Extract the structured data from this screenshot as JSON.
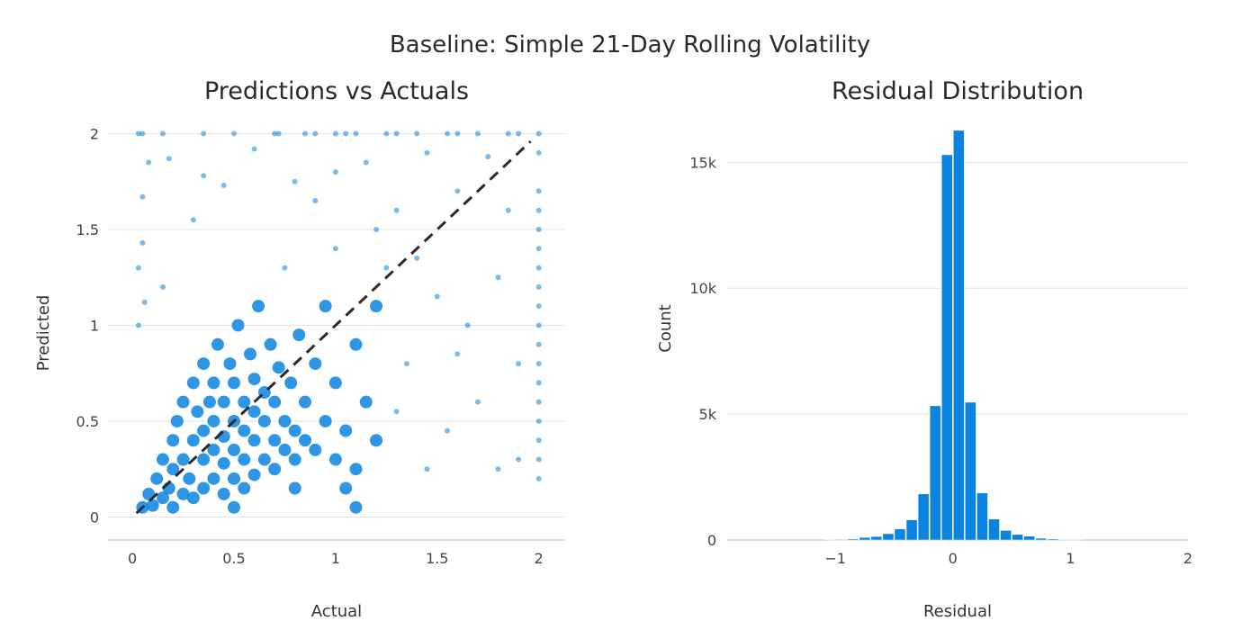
{
  "title": "Baseline: Simple 21-Day Rolling Volatility",
  "colors": {
    "marker": "#0a84e0",
    "diagonal": "#2b2b2b",
    "grid": "#e3e3e3",
    "tick": "#444444"
  },
  "chart_data": [
    {
      "type": "scatter",
      "title": "Predictions vs Actuals",
      "xlabel": "Actual",
      "ylabel": "Predicted",
      "xlim": [
        -0.12,
        2.13
      ],
      "ylim": [
        -0.12,
        2.04
      ],
      "xticks": [
        0,
        0.5,
        1,
        1.5,
        2
      ],
      "xtick_labels": [
        "0",
        "0.5",
        "1",
        "1.5",
        "2"
      ],
      "yticks": [
        0,
        0.5,
        1,
        1.5,
        2
      ],
      "ytick_labels": [
        "0",
        "0.5",
        "1",
        "1.5",
        "2"
      ],
      "grid": "horizontal",
      "reference_line": {
        "style": "dashed",
        "from": [
          0.02,
          0.02
        ],
        "to": [
          1.96,
          1.96
        ]
      },
      "points": [
        [
          0.05,
          0.05
        ],
        [
          0.08,
          0.12
        ],
        [
          0.1,
          0.06
        ],
        [
          0.12,
          0.2
        ],
        [
          0.15,
          0.1
        ],
        [
          0.15,
          0.3
        ],
        [
          0.18,
          0.15
        ],
        [
          0.2,
          0.05
        ],
        [
          0.2,
          0.25
        ],
        [
          0.2,
          0.4
        ],
        [
          0.22,
          0.5
        ],
        [
          0.25,
          0.12
        ],
        [
          0.25,
          0.3
        ],
        [
          0.25,
          0.6
        ],
        [
          0.28,
          0.2
        ],
        [
          0.3,
          0.1
        ],
        [
          0.3,
          0.4
        ],
        [
          0.3,
          0.7
        ],
        [
          0.32,
          0.55
        ],
        [
          0.35,
          0.15
        ],
        [
          0.35,
          0.3
        ],
        [
          0.35,
          0.45
        ],
        [
          0.35,
          0.8
        ],
        [
          0.38,
          0.6
        ],
        [
          0.4,
          0.2
        ],
        [
          0.4,
          0.35
        ],
        [
          0.4,
          0.5
        ],
        [
          0.4,
          0.7
        ],
        [
          0.42,
          0.9
        ],
        [
          0.45,
          0.12
        ],
        [
          0.45,
          0.28
        ],
        [
          0.45,
          0.42
        ],
        [
          0.45,
          0.6
        ],
        [
          0.48,
          0.8
        ],
        [
          0.5,
          0.2
        ],
        [
          0.5,
          0.35
        ],
        [
          0.5,
          0.5
        ],
        [
          0.5,
          0.7
        ],
        [
          0.52,
          1.0
        ],
        [
          0.55,
          0.15
        ],
        [
          0.55,
          0.3
        ],
        [
          0.55,
          0.45
        ],
        [
          0.55,
          0.6
        ],
        [
          0.58,
          0.85
        ],
        [
          0.6,
          0.22
        ],
        [
          0.6,
          0.4
        ],
        [
          0.6,
          0.55
        ],
        [
          0.6,
          0.72
        ],
        [
          0.62,
          1.1
        ],
        [
          0.65,
          0.3
        ],
        [
          0.65,
          0.5
        ],
        [
          0.65,
          0.65
        ],
        [
          0.68,
          0.9
        ],
        [
          0.7,
          0.25
        ],
        [
          0.7,
          0.4
        ],
        [
          0.7,
          0.6
        ],
        [
          0.72,
          0.78
        ],
        [
          0.75,
          0.35
        ],
        [
          0.75,
          0.5
        ],
        [
          0.78,
          0.7
        ],
        [
          0.8,
          0.3
        ],
        [
          0.8,
          0.45
        ],
        [
          0.82,
          0.95
        ],
        [
          0.85,
          0.4
        ],
        [
          0.85,
          0.6
        ],
        [
          0.9,
          0.35
        ],
        [
          0.9,
          0.8
        ],
        [
          0.95,
          0.5
        ],
        [
          1.0,
          0.3
        ],
        [
          1.0,
          0.7
        ],
        [
          1.05,
          0.45
        ],
        [
          1.1,
          0.9
        ],
        [
          1.1,
          0.25
        ],
        [
          1.15,
          0.6
        ],
        [
          1.2,
          0.4
        ],
        [
          1.2,
          1.1
        ],
        [
          0.03,
          2
        ],
        [
          0.05,
          2
        ],
        [
          0.15,
          2
        ],
        [
          0.35,
          2
        ],
        [
          0.5,
          2
        ],
        [
          0.7,
          2
        ],
        [
          0.72,
          2
        ],
        [
          0.85,
          2
        ],
        [
          0.9,
          2
        ],
        [
          1.0,
          2
        ],
        [
          1.05,
          2
        ],
        [
          1.1,
          2
        ],
        [
          1.25,
          2
        ],
        [
          1.3,
          2
        ],
        [
          1.4,
          2
        ],
        [
          1.55,
          2
        ],
        [
          1.6,
          2
        ],
        [
          1.7,
          2
        ],
        [
          1.85,
          2
        ],
        [
          1.9,
          2
        ],
        [
          2,
          2
        ],
        [
          0.08,
          1.85
        ],
        [
          0.18,
          1.87
        ],
        [
          0.05,
          1.67
        ],
        [
          0.05,
          1.43
        ],
        [
          0.03,
          1.3
        ],
        [
          0.06,
          1.12
        ],
        [
          0.03,
          1.0
        ],
        [
          0.15,
          1.2
        ],
        [
          0.3,
          1.55
        ],
        [
          0.35,
          1.78
        ],
        [
          0.45,
          1.73
        ],
        [
          0.6,
          1.92
        ],
        [
          0.8,
          1.75
        ],
        [
          0.9,
          1.65
        ],
        [
          1.0,
          1.8
        ],
        [
          1.15,
          1.85
        ],
        [
          1.3,
          1.6
        ],
        [
          1.45,
          1.9
        ],
        [
          1.6,
          1.7
        ],
        [
          1.75,
          1.88
        ],
        [
          1.85,
          1.6
        ],
        [
          1.2,
          1.5
        ],
        [
          1.4,
          1.35
        ],
        [
          1.5,
          1.15
        ],
        [
          1.65,
          1.0
        ],
        [
          1.8,
          1.25
        ],
        [
          1.9,
          0.8
        ],
        [
          1.7,
          0.6
        ],
        [
          1.55,
          0.45
        ],
        [
          1.45,
          0.25
        ],
        [
          1.8,
          0.25
        ],
        [
          1.9,
          0.3
        ],
        [
          1.35,
          0.8
        ],
        [
          1.25,
          1.3
        ],
        [
          1.0,
          1.4
        ],
        [
          0.75,
          1.3
        ],
        [
          1.1,
          0.05
        ],
        [
          0.5,
          0.05
        ],
        [
          2,
          1.7
        ],
        [
          2,
          1.6
        ],
        [
          2,
          1.5
        ],
        [
          2,
          1.3
        ],
        [
          2,
          1.2
        ],
        [
          2,
          1.1
        ],
        [
          2,
          1.0
        ],
        [
          2,
          0.9
        ],
        [
          2,
          0.8
        ],
        [
          2,
          0.7
        ],
        [
          2,
          0.6
        ],
        [
          2,
          0.5
        ],
        [
          2,
          0.4
        ],
        [
          2,
          0.3
        ],
        [
          2,
          0.2
        ],
        [
          2,
          1.9
        ],
        [
          2,
          1.4
        ],
        [
          1.3,
          0.55
        ],
        [
          1.6,
          0.85
        ],
        [
          0.95,
          1.1
        ],
        [
          1.05,
          0.15
        ],
        [
          0.8,
          0.15
        ]
      ]
    },
    {
      "type": "bar",
      "subtype": "histogram",
      "title": "Residual Distribution",
      "xlabel": "Residual",
      "ylabel": "Count",
      "xlim": [
        -1.92,
        2
      ],
      "ylim": [
        0,
        16800
      ],
      "xticks": [
        -1,
        0,
        1,
        2
      ],
      "xtick_labels": [
        "−1",
        "0",
        "1",
        "2"
      ],
      "yticks": [
        0,
        5000,
        10000,
        15000
      ],
      "ytick_labels": [
        "0",
        "5k",
        "10k",
        "15k"
      ],
      "grid": "horizontal",
      "bin_width": 0.1,
      "bin_starts": [
        -1.1,
        -1.0,
        -0.9,
        -0.8,
        -0.7,
        -0.6,
        -0.5,
        -0.4,
        -0.3,
        -0.2,
        -0.1,
        0.0,
        0.1,
        0.2,
        0.3,
        0.4,
        0.5,
        0.6,
        0.7,
        0.8,
        0.9,
        1.0
      ],
      "counts": [
        15,
        25,
        40,
        100,
        140,
        250,
        440,
        800,
        1830,
        5330,
        15300,
        16270,
        5470,
        1870,
        830,
        380,
        220,
        150,
        70,
        40,
        20,
        10
      ]
    }
  ]
}
